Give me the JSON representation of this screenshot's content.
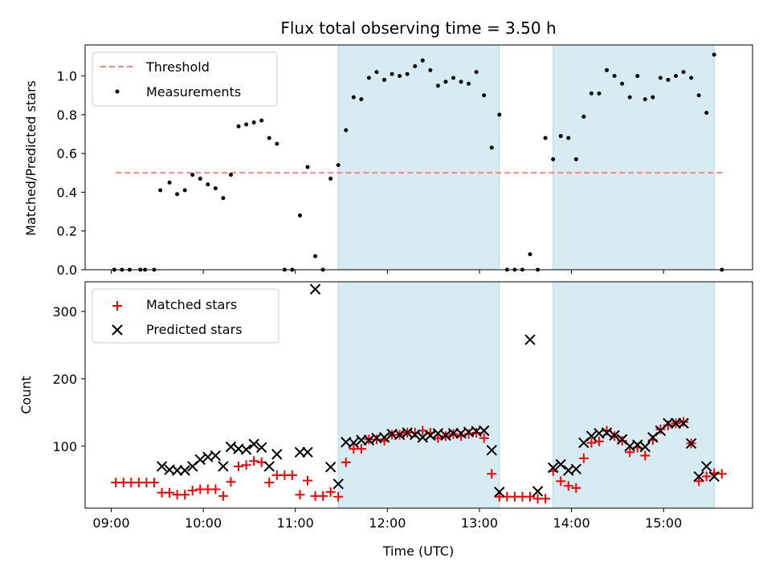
{
  "chart_data": [
    {
      "type": "scatter",
      "title": "Flux total observing time = 3.50 h",
      "xlabel": "",
      "ylabel": "Matched/Predicted stars",
      "xlim": [
        "08:43",
        "15:58"
      ],
      "ylim": [
        0,
        1.16
      ],
      "yticks": [
        "0.0",
        "0.2",
        "0.4",
        "0.6",
        "0.8",
        "1.0"
      ],
      "ytick_values": [
        0,
        0.2,
        0.4,
        0.6,
        0.8,
        1.0
      ],
      "grid": false,
      "legend": {
        "placement": "upper-left",
        "entries": [
          "Threshold",
          "Measurements"
        ]
      },
      "threshold": {
        "name": "Threshold",
        "value": 0.5,
        "x_range": [
          "09:03",
          "15:39"
        ],
        "color": "#ff8080"
      },
      "shaded_regions": [
        {
          "start": "11:28",
          "end": "13:13",
          "color": "#add8e6"
        },
        {
          "start": "13:48",
          "end": "15:33",
          "color": "#add8e6"
        }
      ],
      "series": [
        {
          "name": "Measurements",
          "color": "#000000",
          "points": [
            [
              "09:02",
              0.0
            ],
            [
              "09:07",
              0.0
            ],
            [
              "09:12",
              0.0
            ],
            [
              "09:19",
              0.0
            ],
            [
              "09:22",
              0.0
            ],
            [
              "09:28",
              0.0
            ],
            [
              "09:32",
              0.41
            ],
            [
              "09:38",
              0.45
            ],
            [
              "09:43",
              0.39
            ],
            [
              "09:48",
              0.41
            ],
            [
              "09:53",
              0.49
            ],
            [
              "09:58",
              0.47
            ],
            [
              "10:03",
              0.44
            ],
            [
              "10:08",
              0.42
            ],
            [
              "10:13",
              0.37
            ],
            [
              "10:18",
              0.49
            ],
            [
              "10:23",
              0.74
            ],
            [
              "10:28",
              0.75
            ],
            [
              "10:33",
              0.76
            ],
            [
              "10:38",
              0.77
            ],
            [
              "10:43",
              0.68
            ],
            [
              "10:48",
              0.65
            ],
            [
              "10:53",
              0.0
            ],
            [
              "10:58",
              0.0
            ],
            [
              "11:03",
              0.28
            ],
            [
              "11:08",
              0.53
            ],
            [
              "11:13",
              0.07
            ],
            [
              "11:18",
              0.0
            ],
            [
              "11:23",
              0.47
            ],
            [
              "11:28",
              0.54
            ],
            [
              "11:33",
              0.72
            ],
            [
              "11:38",
              0.89
            ],
            [
              "11:43",
              0.88
            ],
            [
              "11:48",
              0.99
            ],
            [
              "11:53",
              1.02
            ],
            [
              "11:58",
              0.98
            ],
            [
              "12:03",
              1.01
            ],
            [
              "12:08",
              1.0
            ],
            [
              "12:13",
              1.01
            ],
            [
              "12:18",
              1.05
            ],
            [
              "12:23",
              1.08
            ],
            [
              "12:28",
              1.03
            ],
            [
              "12:33",
              0.95
            ],
            [
              "12:38",
              0.97
            ],
            [
              "12:43",
              0.99
            ],
            [
              "12:48",
              0.97
            ],
            [
              "12:53",
              0.96
            ],
            [
              "12:58",
              1.02
            ],
            [
              "13:03",
              0.9
            ],
            [
              "13:08",
              0.63
            ],
            [
              "13:13",
              0.8
            ],
            [
              "13:18",
              0.0
            ],
            [
              "13:23",
              0.0
            ],
            [
              "13:28",
              0.0
            ],
            [
              "13:33",
              0.08
            ],
            [
              "13:38",
              0.0
            ],
            [
              "13:43",
              0.68
            ],
            [
              "13:48",
              0.57
            ],
            [
              "13:53",
              0.69
            ],
            [
              "13:58",
              0.68
            ],
            [
              "14:03",
              0.57
            ],
            [
              "14:08",
              0.79
            ],
            [
              "14:13",
              0.91
            ],
            [
              "14:18",
              0.91
            ],
            [
              "14:23",
              1.03
            ],
            [
              "14:28",
              1.0
            ],
            [
              "14:33",
              0.96
            ],
            [
              "14:38",
              0.89
            ],
            [
              "14:43",
              1.0
            ],
            [
              "14:48",
              0.88
            ],
            [
              "14:53",
              0.89
            ],
            [
              "14:58",
              0.99
            ],
            [
              "15:03",
              0.98
            ],
            [
              "15:08",
              1.0
            ],
            [
              "15:13",
              1.02
            ],
            [
              "15:18",
              0.99
            ],
            [
              "15:23",
              0.9
            ],
            [
              "15:28",
              0.81
            ],
            [
              "15:33",
              1.11
            ],
            [
              "15:38",
              0.0
            ]
          ]
        }
      ]
    },
    {
      "type": "scatter",
      "title": "",
      "xlabel": "Time (UTC)",
      "ylabel": "Count",
      "xlim": [
        "08:43",
        "15:58"
      ],
      "ylim": [
        8,
        344
      ],
      "yticks": [
        "100",
        "200",
        "300"
      ],
      "ytick_values": [
        100,
        200,
        300
      ],
      "xticks": [
        "09:00",
        "10:00",
        "11:00",
        "12:00",
        "13:00",
        "14:00",
        "15:00"
      ],
      "grid": false,
      "legend": {
        "placement": "upper-left",
        "entries": [
          "Matched stars",
          "Predicted stars"
        ]
      },
      "shaded_regions": [
        {
          "start": "11:28",
          "end": "13:13",
          "color": "#add8e6"
        },
        {
          "start": "13:48",
          "end": "15:33",
          "color": "#add8e6"
        }
      ],
      "series": [
        {
          "name": "Matched stars",
          "marker": "plus",
          "color": "#ff0000",
          "points": [
            [
              "09:03",
              46
            ],
            [
              "09:08",
              46
            ],
            [
              "09:13",
              46
            ],
            [
              "09:18",
              46
            ],
            [
              "09:23",
              46
            ],
            [
              "09:28",
              46
            ],
            [
              "09:33",
              31
            ],
            [
              "09:38",
              31
            ],
            [
              "09:43",
              28
            ],
            [
              "09:48",
              28
            ],
            [
              "09:53",
              34
            ],
            [
              "09:58",
              36
            ],
            [
              "10:03",
              36
            ],
            [
              "10:08",
              36
            ],
            [
              "10:13",
              26
            ],
            [
              "10:18",
              47
            ],
            [
              "10:23",
              70
            ],
            [
              "10:28",
              72
            ],
            [
              "10:33",
              78
            ],
            [
              "10:38",
              76
            ],
            [
              "10:43",
              46
            ],
            [
              "10:48",
              57
            ],
            [
              "10:53",
              57
            ],
            [
              "10:58",
              57
            ],
            [
              "11:03",
              28
            ],
            [
              "11:08",
              49
            ],
            [
              "11:13",
              26
            ],
            [
              "11:18",
              26
            ],
            [
              "11:23",
              32
            ],
            [
              "11:28",
              25
            ],
            [
              "11:33",
              76
            ],
            [
              "11:38",
              96
            ],
            [
              "11:43",
              96
            ],
            [
              "11:48",
              110
            ],
            [
              "11:53",
              110
            ],
            [
              "11:58",
              108
            ],
            [
              "12:03",
              117
            ],
            [
              "12:08",
              117
            ],
            [
              "12:13",
              120
            ],
            [
              "12:18",
              120
            ],
            [
              "12:23",
              123
            ],
            [
              "12:28",
              120
            ],
            [
              "12:33",
              112
            ],
            [
              "12:38",
              115
            ],
            [
              "12:43",
              118
            ],
            [
              "12:48",
              115
            ],
            [
              "12:53",
              118
            ],
            [
              "12:58",
              120
            ],
            [
              "13:03",
              112
            ],
            [
              "13:08",
              59
            ],
            [
              "13:13",
              25
            ],
            [
              "13:18",
              25
            ],
            [
              "13:23",
              25
            ],
            [
              "13:28",
              25
            ],
            [
              "13:33",
              25
            ],
            [
              "13:38",
              22
            ],
            [
              "13:43",
              22
            ],
            [
              "13:48",
              63
            ],
            [
              "13:53",
              48
            ],
            [
              "13:58",
              41
            ],
            [
              "14:03",
              38
            ],
            [
              "14:08",
              82
            ],
            [
              "14:13",
              105
            ],
            [
              "14:18",
              107
            ],
            [
              "14:23",
              123
            ],
            [
              "14:28",
              115
            ],
            [
              "14:33",
              108
            ],
            [
              "14:38",
              91
            ],
            [
              "14:43",
              98
            ],
            [
              "14:48",
              86
            ],
            [
              "14:53",
              109
            ],
            [
              "14:58",
              125
            ],
            [
              "15:03",
              131
            ],
            [
              "15:08",
              134
            ],
            [
              "15:13",
              136
            ],
            [
              "15:18",
              104
            ],
            [
              "15:23",
              48
            ],
            [
              "15:28",
              55
            ],
            [
              "15:33",
              60
            ],
            [
              "15:38",
              59
            ]
          ]
        },
        {
          "name": "Predicted stars",
          "marker": "x",
          "color": "#000000",
          "points": [
            [
              "09:33",
              70
            ],
            [
              "09:38",
              65
            ],
            [
              "09:43",
              64
            ],
            [
              "09:48",
              64
            ],
            [
              "09:53",
              70
            ],
            [
              "09:58",
              80
            ],
            [
              "10:03",
              84
            ],
            [
              "10:08",
              86
            ],
            [
              "10:13",
              70
            ],
            [
              "10:18",
              99
            ],
            [
              "10:23",
              96
            ],
            [
              "10:28",
              95
            ],
            [
              "10:33",
              103
            ],
            [
              "10:38",
              98
            ],
            [
              "10:43",
              70
            ],
            [
              "10:48",
              88
            ],
            [
              "11:03",
              91
            ],
            [
              "11:08",
              91
            ],
            [
              "11:13",
              333
            ],
            [
              "11:23",
              69
            ],
            [
              "11:28",
              44
            ],
            [
              "11:33",
              106
            ],
            [
              "11:38",
              105
            ],
            [
              "11:43",
              109
            ],
            [
              "11:48",
              109
            ],
            [
              "11:53",
              112
            ],
            [
              "11:58",
              113
            ],
            [
              "12:03",
              118
            ],
            [
              "12:08",
              117
            ],
            [
              "12:13",
              120
            ],
            [
              "12:18",
              117
            ],
            [
              "12:23",
              113
            ],
            [
              "12:28",
              116
            ],
            [
              "12:33",
              119
            ],
            [
              "12:38",
              116
            ],
            [
              "12:43",
              119
            ],
            [
              "12:48",
              119
            ],
            [
              "12:53",
              121
            ],
            [
              "12:58",
              122
            ],
            [
              "13:03",
              123
            ],
            [
              "13:08",
              94
            ],
            [
              "13:13",
              32
            ],
            [
              "13:33",
              258
            ],
            [
              "13:38",
              33
            ],
            [
              "13:48",
              68
            ],
            [
              "13:53",
              73
            ],
            [
              "13:58",
              64
            ],
            [
              "14:03",
              66
            ],
            [
              "14:08",
              105
            ],
            [
              "14:13",
              115
            ],
            [
              "14:18",
              119
            ],
            [
              "14:23",
              120
            ],
            [
              "14:28",
              116
            ],
            [
              "14:33",
              110
            ],
            [
              "14:38",
              100
            ],
            [
              "14:43",
              102
            ],
            [
              "14:48",
              99
            ],
            [
              "14:53",
              113
            ],
            [
              "14:58",
              123
            ],
            [
              "15:03",
              134
            ],
            [
              "15:08",
              134
            ],
            [
              "15:13",
              134
            ],
            [
              "15:18",
              104
            ],
            [
              "15:23",
              55
            ],
            [
              "15:28",
              70
            ],
            [
              "15:33",
              55
            ]
          ]
        }
      ]
    }
  ]
}
